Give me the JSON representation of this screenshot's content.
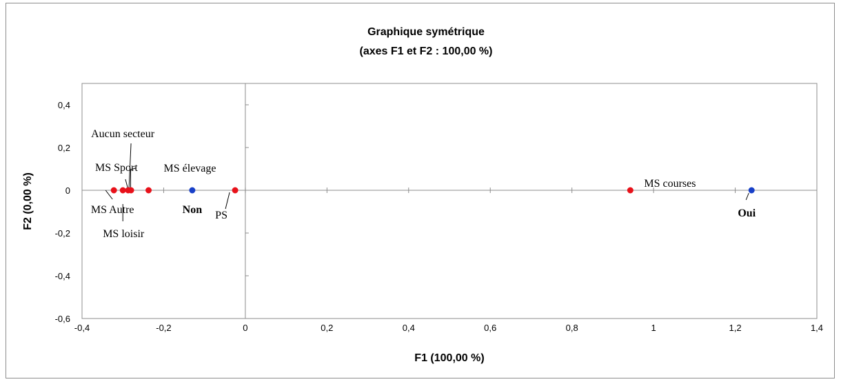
{
  "chart_data": {
    "type": "scatter",
    "title": "Graphique symétrique",
    "subtitle": "(axes F1 et F2 : 100,00 %)",
    "xlabel": "F1 (100,00 %)",
    "ylabel": "F2 (0,00 %)",
    "xlim": [
      -0.4,
      1.4
    ],
    "ylim": [
      -0.6,
      0.5
    ],
    "xticks": [
      -0.4,
      -0.2,
      0,
      0.2,
      0.4,
      0.6,
      0.8,
      1,
      1.2,
      1.4
    ],
    "xtick_labels": [
      "-0,4",
      "-0,2",
      "0",
      "0,2",
      "0,4",
      "0,6",
      "0,8",
      "1",
      "1,2",
      "1,4"
    ],
    "yticks": [
      0.4,
      0.2,
      0,
      -0.2,
      -0.4,
      -0.6
    ],
    "ytick_labels": [
      "0,4",
      "0,2",
      "0",
      "-0,2",
      "-0,4",
      "-0,6"
    ],
    "grid": false,
    "series": [
      {
        "color": "#e8111a",
        "points": [
          {
            "label": "MS Autre",
            "x": -0.322,
            "y": 0
          },
          {
            "label": "MS loisir",
            "x": -0.3,
            "y": 0
          },
          {
            "label": "MS Sport",
            "x": -0.287,
            "y": 0
          },
          {
            "label": "Aucun secteur",
            "x": -0.28,
            "y": 0
          },
          {
            "label": "MS élevage",
            "x": -0.237,
            "y": 0
          },
          {
            "label": "PS",
            "x": -0.025,
            "y": 0
          },
          {
            "label": "MS courses",
            "x": 0.943,
            "y": 0
          }
        ]
      },
      {
        "color": "#1840c8",
        "bold_labels": true,
        "points": [
          {
            "label": "Non",
            "x": -0.13,
            "y": 0
          },
          {
            "label": "Oui",
            "x": 1.24,
            "y": 0
          }
        ]
      }
    ]
  }
}
